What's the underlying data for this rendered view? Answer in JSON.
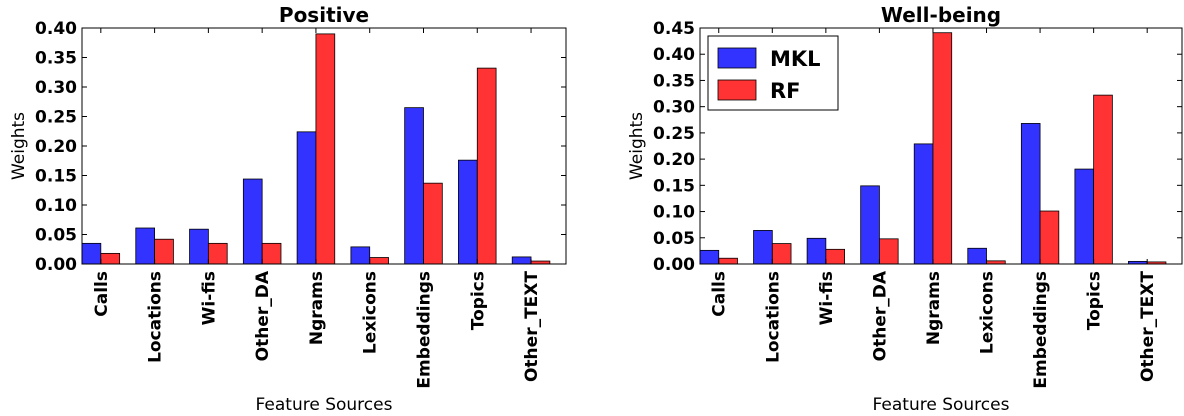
{
  "chart_data": [
    {
      "type": "bar",
      "title": "Positive",
      "xlabel": "Feature Sources",
      "ylabel": "Weights",
      "ylim": [
        0,
        0.4
      ],
      "yticks": [
        "0.00",
        "0.05",
        "0.10",
        "0.15",
        "0.20",
        "0.25",
        "0.30",
        "0.35",
        "0.40"
      ],
      "categories": [
        "Calls",
        "Locations",
        "Wi-fis",
        "Other_DA",
        "Ngrams",
        "Lexicons",
        "Embeddings",
        "Topics",
        "Other_TEXT"
      ],
      "series": [
        {
          "name": "MKL",
          "color": "#3333ff",
          "values": [
            0.035,
            0.061,
            0.059,
            0.144,
            0.224,
            0.029,
            0.265,
            0.176,
            0.012
          ]
        },
        {
          "name": "RF",
          "color": "#ff3333",
          "values": [
            0.018,
            0.042,
            0.035,
            0.035,
            0.39,
            0.011,
            0.137,
            0.332,
            0.005
          ]
        }
      ],
      "legend": "none",
      "grid": false
    },
    {
      "type": "bar",
      "title": "Well-being",
      "xlabel": "Feature Sources",
      "ylabel": "Weights",
      "ylim": [
        0,
        0.45
      ],
      "yticks": [
        "0.00",
        "0.05",
        "0.10",
        "0.15",
        "0.20",
        "0.25",
        "0.30",
        "0.35",
        "0.40",
        "0.45"
      ],
      "categories": [
        "Calls",
        "Locations",
        "Wi-fis",
        "Other_DA",
        "Ngrams",
        "Lexicons",
        "Embeddings",
        "Topics",
        "Other_TEXT"
      ],
      "series": [
        {
          "name": "MKL",
          "color": "#3333ff",
          "values": [
            0.026,
            0.064,
            0.049,
            0.149,
            0.229,
            0.03,
            0.268,
            0.181,
            0.005
          ]
        },
        {
          "name": "RF",
          "color": "#ff3333",
          "values": [
            0.011,
            0.039,
            0.028,
            0.048,
            0.441,
            0.006,
            0.101,
            0.322,
            0.004
          ]
        }
      ],
      "legend": "top-left",
      "grid": false
    }
  ]
}
